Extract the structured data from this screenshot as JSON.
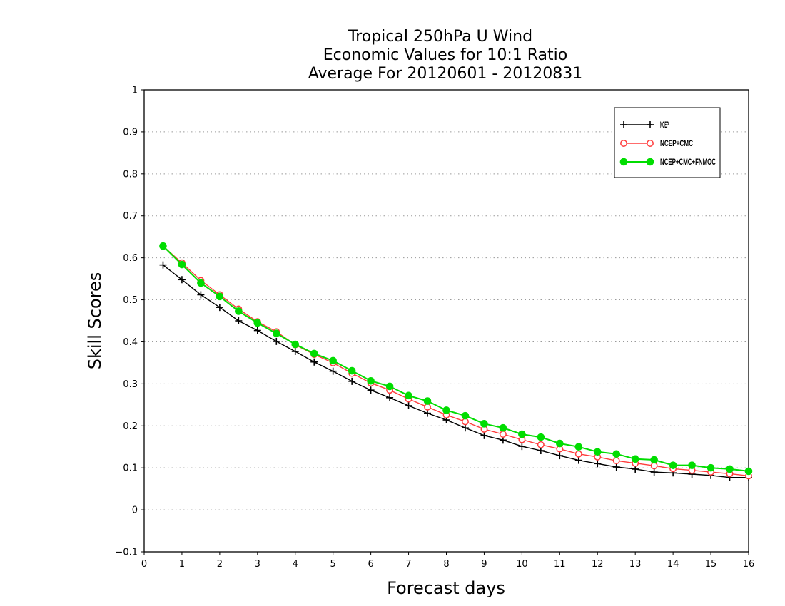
{
  "chart_data": {
    "type": "line",
    "title": [
      "Tropical 250hPa U Wind",
      "Economic Values for 10:1 Ratio",
      "Average For 20120601 - 20120831"
    ],
    "xlabel": "Forecast days",
    "ylabel": "Skill Scores",
    "xlim": [
      0,
      16
    ],
    "ylim": [
      -0.1,
      1
    ],
    "xticks": [
      "0",
      "1",
      "2",
      "3",
      "4",
      "5",
      "6",
      "7",
      "8",
      "9",
      "10",
      "11",
      "12",
      "13",
      "14",
      "15",
      "16"
    ],
    "yticks": [
      "-0.1",
      "0",
      "0.1",
      "0.2",
      "0.3",
      "0.4",
      "0.5",
      "0.6",
      "0.7",
      "0.8",
      "0.9",
      "1"
    ],
    "grid": true,
    "legend_position": "top-right",
    "x": [
      0.5,
      1,
      1.5,
      2,
      2.5,
      3,
      3.5,
      4,
      4.5,
      5,
      5.5,
      6,
      6.5,
      7,
      7.5,
      8,
      8.5,
      9,
      9.5,
      10,
      10.5,
      11,
      11.5,
      12,
      12.5,
      13,
      13.5,
      14,
      14.5,
      15,
      15.5,
      16
    ],
    "series": [
      {
        "name": "NCEP",
        "color": "#000000",
        "marker": "plus",
        "values": [
          0.583,
          0.548,
          0.512,
          0.482,
          0.45,
          0.427,
          0.401,
          0.377,
          0.352,
          0.33,
          0.306,
          0.285,
          0.267,
          0.248,
          0.23,
          0.214,
          0.195,
          0.177,
          0.166,
          0.151,
          0.141,
          0.129,
          0.118,
          0.11,
          0.102,
          0.097,
          0.09,
          0.088,
          0.085,
          0.082,
          0.077,
          0.077
        ]
      },
      {
        "name": "NCEP+CMC",
        "color": "#ff3b3b",
        "marker": "open-circle",
        "values": [
          0.628,
          0.588,
          0.546,
          0.512,
          0.478,
          0.448,
          0.424,
          0.393,
          0.37,
          0.35,
          0.325,
          0.302,
          0.285,
          0.264,
          0.245,
          0.226,
          0.21,
          0.192,
          0.18,
          0.167,
          0.155,
          0.145,
          0.133,
          0.126,
          0.117,
          0.111,
          0.105,
          0.098,
          0.094,
          0.09,
          0.086,
          0.081
        ]
      },
      {
        "name": "NCEP+CMC+FNMOC",
        "color": "#00dd00",
        "marker": "filled-circle",
        "values": [
          0.628,
          0.584,
          0.54,
          0.508,
          0.473,
          0.445,
          0.42,
          0.394,
          0.372,
          0.355,
          0.331,
          0.307,
          0.294,
          0.272,
          0.259,
          0.237,
          0.224,
          0.205,
          0.195,
          0.18,
          0.173,
          0.158,
          0.15,
          0.138,
          0.133,
          0.121,
          0.119,
          0.106,
          0.106,
          0.1,
          0.097,
          0.092
        ]
      }
    ]
  }
}
